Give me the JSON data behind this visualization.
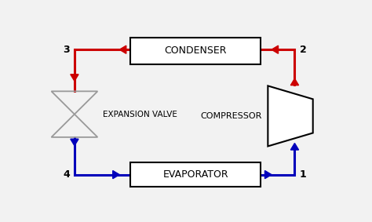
{
  "bg_color": "#f2f2f2",
  "red_color": "#cc0000",
  "blue_color": "#0000bb",
  "gray_color": "#999999",
  "condenser_label": "CONDENSER",
  "evaporator_label": "EVAPORATOR",
  "compressor_label": "COMPRESSOR",
  "expansion_label": "EXPANSION VALVE",
  "point1_label": "1",
  "point2_label": "2",
  "point3_label": "3",
  "point4_label": "4",
  "lw": 2.2,
  "arrow_size": 0.022
}
